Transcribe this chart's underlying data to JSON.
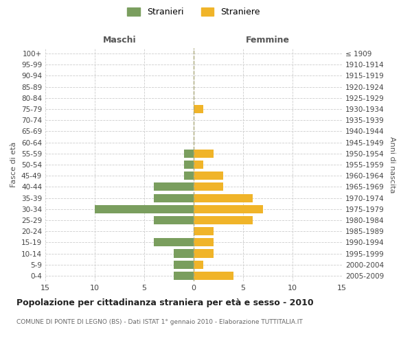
{
  "age_groups": [
    "100+",
    "95-99",
    "90-94",
    "85-89",
    "80-84",
    "75-79",
    "70-74",
    "65-69",
    "60-64",
    "55-59",
    "50-54",
    "45-49",
    "40-44",
    "35-39",
    "30-34",
    "25-29",
    "20-24",
    "15-19",
    "10-14",
    "5-9",
    "0-4"
  ],
  "birth_years": [
    "≤ 1909",
    "1910-1914",
    "1915-1919",
    "1920-1924",
    "1925-1929",
    "1930-1934",
    "1935-1939",
    "1940-1944",
    "1945-1949",
    "1950-1954",
    "1955-1959",
    "1960-1964",
    "1965-1969",
    "1970-1974",
    "1975-1979",
    "1980-1984",
    "1985-1989",
    "1990-1994",
    "1995-1999",
    "2000-2004",
    "2005-2009"
  ],
  "maschi": [
    0,
    0,
    0,
    0,
    0,
    0,
    0,
    0,
    0,
    1,
    1,
    1,
    4,
    4,
    10,
    4,
    0,
    4,
    2,
    2,
    2
  ],
  "femmine": [
    0,
    0,
    0,
    0,
    0,
    1,
    0,
    0,
    0,
    2,
    1,
    3,
    3,
    6,
    7,
    6,
    2,
    2,
    2,
    1,
    4
  ],
  "maschi_color": "#7a9e5e",
  "femmine_color": "#f0b429",
  "title": "Popolazione per cittadinanza straniera per età e sesso - 2010",
  "subtitle": "COMUNE DI PONTE DI LEGNO (BS) - Dati ISTAT 1° gennaio 2010 - Elaborazione TUTTITALIA.IT",
  "xlabel_left": "Maschi",
  "xlabel_right": "Femmine",
  "ylabel_left": "Fasce di età",
  "ylabel_right": "Anni di nascita",
  "legend_maschi": "Stranieri",
  "legend_femmine": "Straniere",
  "xlim": 15,
  "background_color": "#ffffff",
  "grid_color": "#cccccc"
}
